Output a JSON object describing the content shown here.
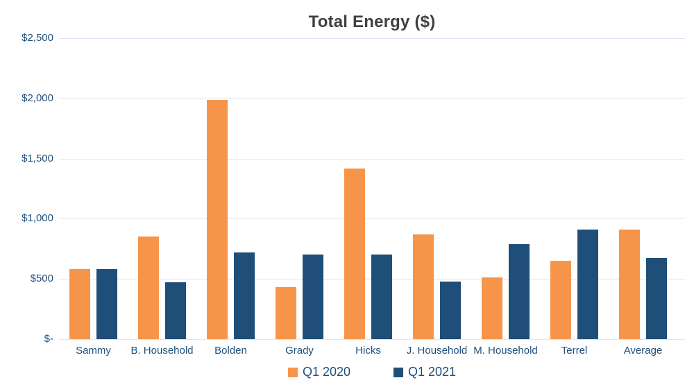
{
  "chart_data": {
    "type": "bar",
    "title": "Total Energy ($)",
    "categories": [
      "Sammy",
      "B. Household",
      "Bolden",
      "Grady",
      "Hicks",
      "J. Household",
      "M. Household",
      "Terrel",
      "Average"
    ],
    "series": [
      {
        "name": "Q1 2020",
        "color": "#F6954A",
        "values": [
          580,
          855,
          1990,
          430,
          1415,
          870,
          510,
          650,
          910
        ]
      },
      {
        "name": "Q1 2021",
        "color": "#1F4E79",
        "values": [
          580,
          475,
          720,
          700,
          700,
          480,
          790,
          910,
          675
        ]
      }
    ],
    "y_axis": {
      "min": 0,
      "max": 2500,
      "step": 500,
      "tick_labels": [
        "$2,500",
        "$2,000",
        "$1,500",
        "$1,000",
        "$500",
        "$-"
      ]
    },
    "xlabel": "",
    "ylabel": "",
    "grid": true,
    "legend_position": "bottom",
    "colors": {
      "title_text": "#404040",
      "axis_text": "#1F4E79",
      "gridline": "#DEE8F5",
      "background": "#FFFFFF"
    }
  }
}
